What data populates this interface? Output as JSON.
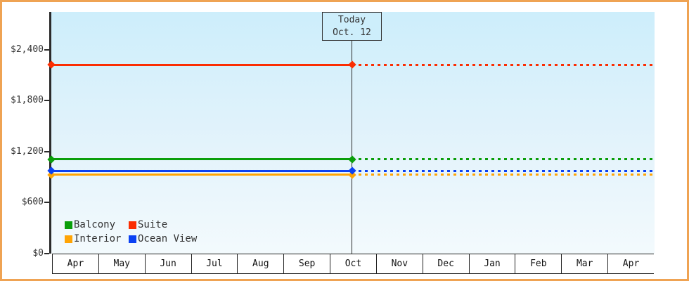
{
  "frame": {
    "border_color": "#efa353",
    "plot_gradient_top": "#cdeefb",
    "plot_gradient_bottom": "#f3fafd",
    "axis_color": "#2b2b2b"
  },
  "today_marker": {
    "line1": "Today",
    "line2": "Oct. 12"
  },
  "legend": {
    "rows": [
      [
        "Balcony",
        "Suite"
      ],
      [
        "Interior",
        "Ocean View"
      ]
    ]
  },
  "chart_data": {
    "type": "line",
    "title": "",
    "categories": [
      "Apr",
      "May",
      "Jun",
      "Jul",
      "Aug",
      "Sep",
      "Oct",
      "Nov",
      "Dec",
      "Jan",
      "Feb",
      "Mar",
      "Apr"
    ],
    "series": [
      {
        "name": "Balcony",
        "color": "#0a9e0a",
        "value": 1105,
        "values": [
          1105,
          1105,
          1105,
          1105,
          1105,
          1105,
          1105,
          1105,
          1105,
          1105,
          1105,
          1105,
          1105
        ]
      },
      {
        "name": "Suite",
        "color": "#fb2d02",
        "value": 2220,
        "values": [
          2220,
          2220,
          2220,
          2220,
          2220,
          2220,
          2220,
          2220,
          2220,
          2220,
          2220,
          2220,
          2220
        ]
      },
      {
        "name": "Interior",
        "color": "#ffa405",
        "value": 923,
        "values": [
          923,
          923,
          923,
          923,
          923,
          923,
          923,
          923,
          923,
          923,
          923,
          923,
          923
        ]
      },
      {
        "name": "Ocean View",
        "color": "#0b41f3",
        "value": 972,
        "values": [
          972,
          972,
          972,
          972,
          972,
          972,
          972,
          972,
          972,
          972,
          972,
          972,
          972
        ]
      }
    ],
    "today": {
      "label": "Today",
      "date": "Oct. 12",
      "month": "Oct",
      "day": 12
    },
    "yticks": [
      {
        "label": "$0",
        "value": 0
      },
      {
        "label": "$600",
        "value": 600
      },
      {
        "label": "$1,200",
        "value": 1200
      },
      {
        "label": "$1,800",
        "value": 1800
      },
      {
        "label": "$2,400",
        "value": 2400
      }
    ],
    "ylim": [
      0,
      2850
    ],
    "xlabel": "",
    "ylabel": "",
    "grid": false,
    "line_style": {
      "before_today": "solid",
      "after_today": "dashed"
    },
    "legend_position": "bottom-left-inside-plot"
  }
}
